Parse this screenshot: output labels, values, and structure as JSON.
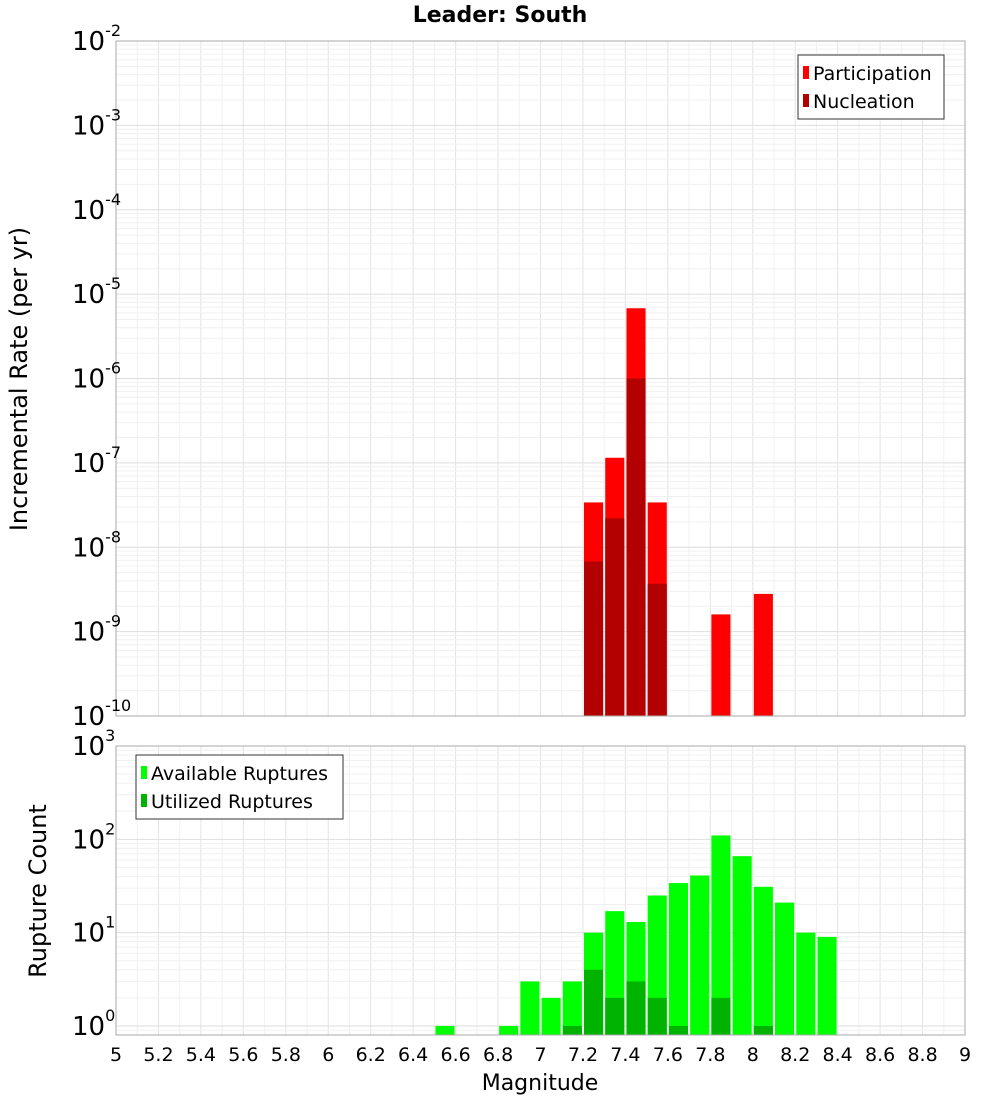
{
  "title": "Leader: South",
  "chart_data": [
    {
      "type": "bar",
      "name": "top",
      "ylabel": "Incremental Rate (per yr)",
      "yscale": "log",
      "ylim": [
        1e-10,
        0.01
      ],
      "xlim": [
        5,
        9
      ],
      "ytick_exponents": [
        "-10",
        "-9",
        "-8",
        "-7",
        "-6",
        "-5",
        "-4",
        "-3",
        "-2"
      ],
      "grid": true,
      "legend": "top-right",
      "legend_entries": [
        {
          "label": "Participation",
          "color": "#ff0000"
        },
        {
          "label": "Nucleation",
          "color": "#b30000"
        }
      ],
      "series": [
        {
          "name": "Participation",
          "color": "#ff0000",
          "x": [
            7.25,
            7.35,
            7.45,
            7.55,
            7.85,
            8.05
          ],
          "values": [
            3.4e-08,
            1.15e-07,
            6.8e-06,
            3.4e-08,
            1.6e-09,
            2.8e-09
          ]
        },
        {
          "name": "Nucleation",
          "color": "#b30000",
          "x": [
            7.25,
            7.35,
            7.45,
            7.55
          ],
          "values": [
            6.8e-09,
            2.2e-08,
            1e-06,
            3.7e-09
          ]
        }
      ]
    },
    {
      "type": "bar",
      "name": "bottom",
      "ylabel": "Rupture Count",
      "xlabel": "Magnitude",
      "yscale": "log",
      "ylim": [
        0.8,
        1000
      ],
      "xlim": [
        5,
        9
      ],
      "ytick_exponents": [
        "0",
        "1",
        "2",
        "3"
      ],
      "xticks": [
        "5",
        "5.2",
        "5.4",
        "5.6",
        "5.8",
        "6",
        "6.2",
        "6.4",
        "6.6",
        "6.8",
        "7",
        "7.2",
        "7.4",
        "7.6",
        "7.8",
        "8",
        "8.2",
        "8.4",
        "8.6",
        "8.8",
        "9"
      ],
      "grid": true,
      "legend": "top-left",
      "legend_entries": [
        {
          "label": "Available Ruptures",
          "color": "#00ff00"
        },
        {
          "label": "Utilized Ruptures",
          "color": "#00b300"
        }
      ],
      "series": [
        {
          "name": "Available Ruptures",
          "color": "#00ff00",
          "x": [
            6.55,
            6.85,
            6.95,
            7.05,
            7.15,
            7.25,
            7.35,
            7.45,
            7.55,
            7.65,
            7.75,
            7.85,
            7.95,
            8.05,
            8.15,
            8.25,
            8.35
          ],
          "values": [
            1,
            1,
            3,
            2,
            3,
            10,
            17,
            13,
            25,
            34,
            41,
            110,
            66,
            31,
            21,
            10,
            9
          ]
        },
        {
          "name": "Utilized Ruptures",
          "color": "#00b300",
          "x": [
            7.15,
            7.25,
            7.35,
            7.45,
            7.55,
            7.65,
            7.85,
            8.05
          ],
          "values": [
            1,
            4,
            2,
            3,
            2,
            1,
            2,
            1
          ]
        }
      ]
    }
  ]
}
